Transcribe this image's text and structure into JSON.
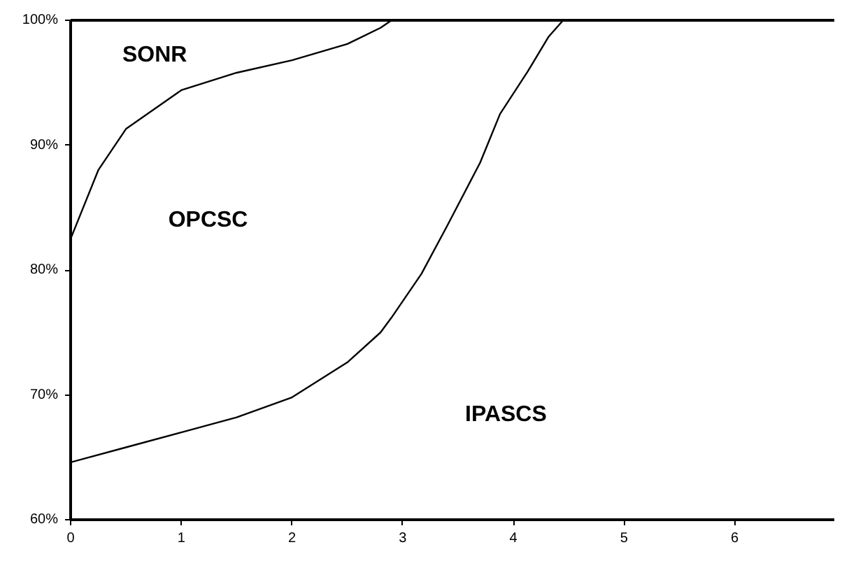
{
  "chart_data": {
    "type": "line",
    "series": [
      {
        "color": "#000000",
        "x": [
          0,
          0.25,
          0.5,
          1,
          1.5,
          2,
          2.5,
          2.8,
          2.9
        ],
        "values": [
          82.5,
          88.0,
          91.3,
          94.4,
          95.8,
          96.8,
          98.1,
          99.4,
          100
        ]
      },
      {
        "color": "#000000",
        "x": [
          0,
          0.5,
          1,
          1.5,
          2,
          2.5,
          2.8,
          2.9,
          3.17,
          3.4,
          3.7,
          3.88,
          4.13,
          4.32,
          4.45
        ],
        "values": [
          64.6,
          65.8,
          67.0,
          68.2,
          69.8,
          72.6,
          75.0,
          76.2,
          79.7,
          83.5,
          88.6,
          92.5,
          95.9,
          98.7,
          100
        ]
      }
    ],
    "xlim": [
      0,
      6.9
    ],
    "ylim": [
      60,
      100
    ],
    "xticks": [
      0,
      1,
      2,
      3,
      4,
      5,
      6
    ],
    "yticks": [
      {
        "value": 60,
        "label": "60%"
      },
      {
        "value": 70,
        "label": "70%"
      },
      {
        "value": 80,
        "label": "80%"
      },
      {
        "value": 90,
        "label": "90%"
      },
      {
        "value": 100,
        "label": "100%"
      }
    ],
    "annotations": [
      "SONR",
      "OPCSC",
      "IPASCS"
    ],
    "grid": false,
    "marker": "none",
    "line_style": "solid"
  }
}
